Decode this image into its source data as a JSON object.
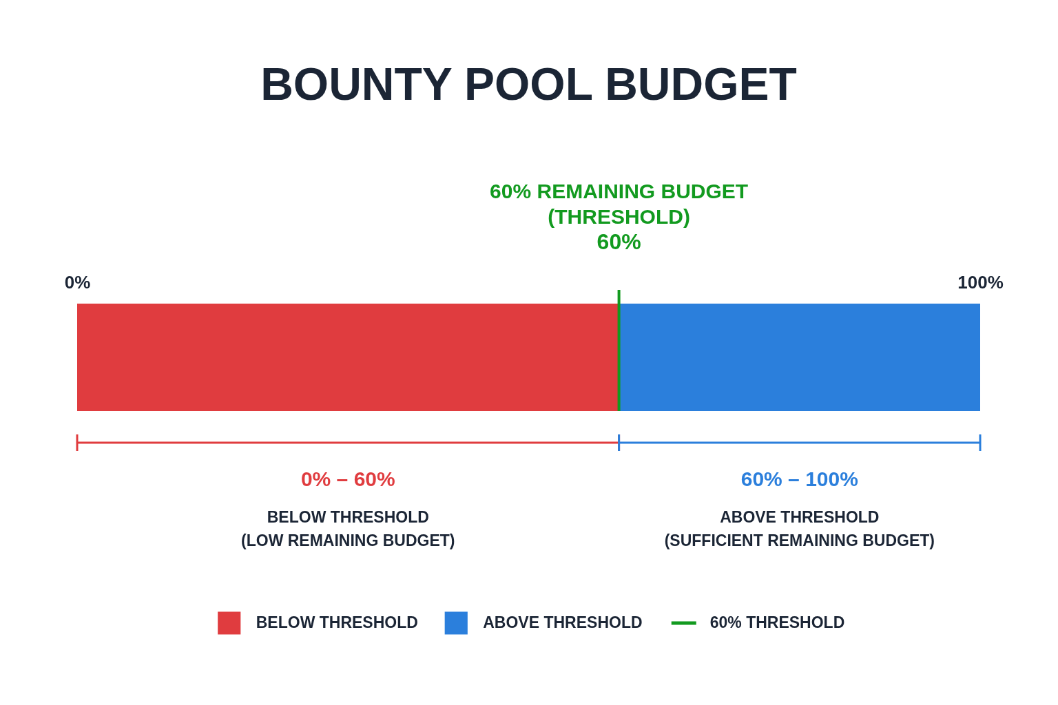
{
  "chart_data": {
    "type": "bar",
    "orientation": "horizontal",
    "stacked": true,
    "title": "BOUNTY POOL BUDGET",
    "categories": [
      null
    ],
    "series": [
      {
        "name": "BELOW THRESHOLD",
        "color": "#e03c3f",
        "values": [
          60
        ]
      },
      {
        "name": "ABOVE THRESHOLD",
        "color": "#2b7fdc",
        "values": [
          40
        ]
      }
    ],
    "xlim": [
      0,
      100
    ],
    "xticks": [
      {
        "value": 0,
        "label": "0%"
      },
      {
        "value": 100,
        "label": "100%"
      }
    ],
    "ref_lines": [
      {
        "axis": "x",
        "value": 60,
        "label": "60% THRESHOLD",
        "color": "#129a1f"
      }
    ],
    "annotations": [
      "60% REMAINING BUDGET\n(THRESHOLD)",
      "60%",
      "0% – 60%",
      "BELOW THRESHOLD\n(LOW REMAINING BUDGET)",
      "60% – 100%",
      "ABOVE THRESHOLD\n(SUFFICIENT REMAINING BUDGET)"
    ],
    "legend": "bottom",
    "grid": false
  }
}
